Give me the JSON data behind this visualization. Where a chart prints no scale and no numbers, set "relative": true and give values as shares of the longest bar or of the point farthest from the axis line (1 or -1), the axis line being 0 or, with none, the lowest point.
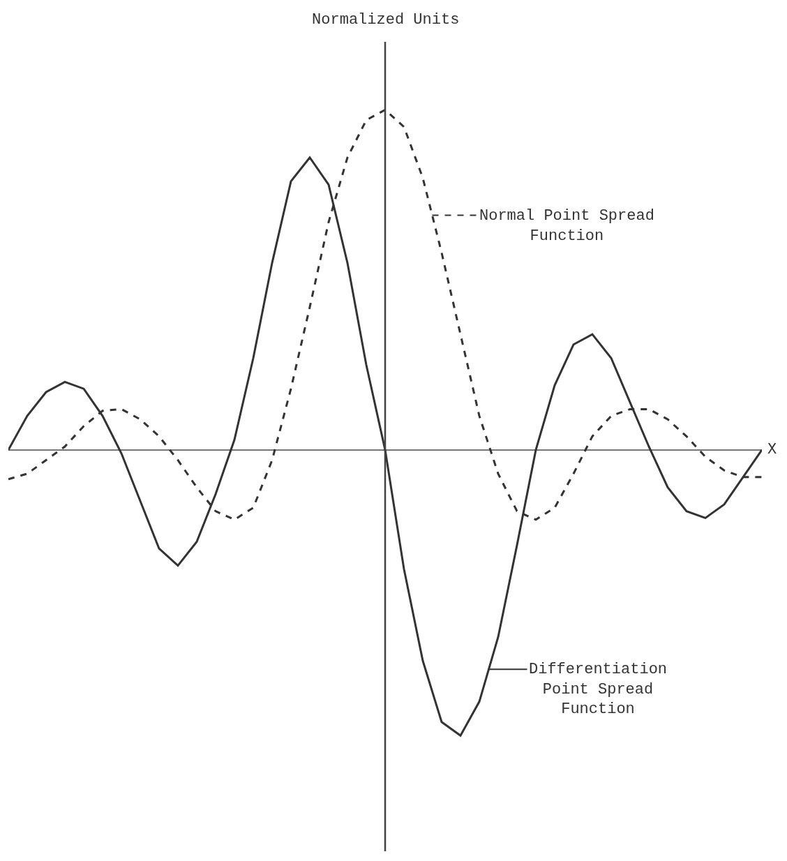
{
  "chart_data": {
    "type": "line",
    "title": "Normalized Units",
    "xlabel": "X",
    "relative": true,
    "legend": "right",
    "grid": false,
    "marker": "none",
    "categories": [
      null,
      null,
      null,
      null,
      null,
      null,
      null,
      null,
      null,
      null,
      null,
      null,
      null,
      null,
      null,
      null,
      null,
      null,
      null,
      null,
      null,
      null,
      null,
      null,
      null,
      null,
      null,
      null,
      null,
      null,
      null,
      null,
      null,
      null,
      null,
      null,
      null,
      null,
      null,
      null,
      null
    ],
    "series": [
      {
        "name": "Normal Point Spread Function",
        "color": "#333333",
        "line_style": "dashed",
        "values": [
          -0.086,
          -0.07,
          -0.03,
          0.01,
          0.07,
          0.115,
          0.12,
          0.09,
          0.04,
          -0.03,
          -0.11,
          -0.18,
          -0.205,
          -0.17,
          -0.03,
          0.18,
          0.42,
          0.67,
          0.86,
          0.97,
          1.0,
          0.95,
          0.8,
          0.58,
          0.34,
          0.1,
          -0.07,
          -0.18,
          -0.205,
          -0.17,
          -0.07,
          0.04,
          0.1,
          0.12,
          0.12,
          0.09,
          0.04,
          -0.02,
          -0.06,
          -0.08,
          -0.08
        ]
      },
      {
        "name": "Differentiation Point Spread Function",
        "color": "#333333",
        "line_style": "solid",
        "values": [
          0,
          0.1,
          0.17,
          0.2,
          0.18,
          0.1,
          -0.01,
          -0.15,
          -0.29,
          -0.34,
          -0.27,
          -0.13,
          0.03,
          0.27,
          0.55,
          0.79,
          0.86,
          0.78,
          0.55,
          0.25,
          0,
          -0.35,
          -0.62,
          -0.8,
          -0.84,
          -0.74,
          -0.55,
          -0.28,
          0,
          0.19,
          0.31,
          0.34,
          0.27,
          0.14,
          0.01,
          -0.11,
          -0.18,
          -0.2,
          -0.16,
          -0.08,
          0
        ]
      }
    ]
  }
}
